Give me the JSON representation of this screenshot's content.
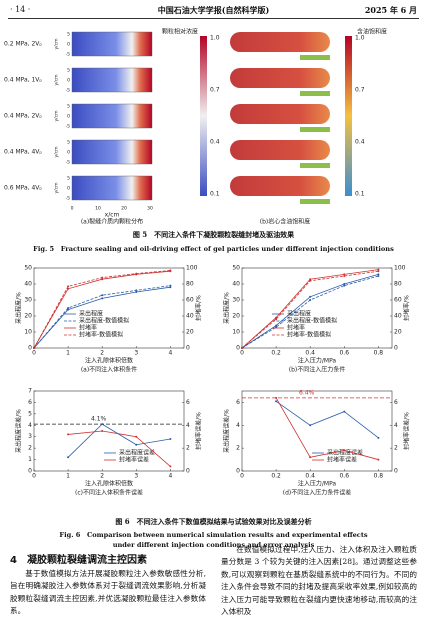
{
  "header": {
    "page": "· 14 ·",
    "journal": "中国石油大学学报(自然科学版)",
    "date": "2025 年 6 月"
  },
  "figure5": {
    "rows": [
      "0.2 MPa, 2Vₚ",
      "0.4 MPa, 1Vₚ",
      "0.4 MPa, 2Vₚ",
      "0.4 MPa, 4Vₚ",
      "0.6 MPa, 4Vₚ"
    ],
    "y_label": "y/cm",
    "y_ticks": [
      "5",
      "0",
      "-5"
    ],
    "x_label": "x/cm",
    "x_ticks": [
      "0",
      "10",
      "20",
      "30"
    ],
    "colorbar_left": "颗粒相对浓度",
    "colorbar_right": "含油饱和度",
    "colorbar_ticks": [
      "1.0",
      "0.7",
      "0.4",
      "0.1"
    ],
    "sub_a": "(a)裂缝介质内颗粒分布",
    "sub_b": "(b)岩心含油饱和度",
    "caption_cn": "图 5　不同注入条件下凝胶颗粒裂缝封堵及驱油效果",
    "caption_en": "Fig. 5　Fracture sealing and oil-driving effect of gel particles under different injection conditions"
  },
  "figure6": {
    "panels": [
      {
        "type": "line",
        "x_label": "注入孔隙体积倍数",
        "y_label": "采出程度/%",
        "y2_label": "封堵率/%",
        "subcaption": "(a)不同注入体积条件",
        "x": [
          0,
          1,
          2,
          3,
          4
        ],
        "xlim": [
          0,
          4.4
        ],
        "xticks": [
          0,
          1,
          2,
          3,
          4
        ],
        "ylim": [
          0,
          50
        ],
        "yticks": [
          0,
          10,
          20,
          30,
          40,
          50
        ],
        "y2lim": [
          0,
          100
        ],
        "y2ticks": [
          0,
          20,
          40,
          60,
          80,
          100
        ],
        "series": [
          {
            "name": "采出程度",
            "color": "#2a5caa",
            "dash": false,
            "values": [
              0,
              24,
              31,
              35,
              38
            ]
          },
          {
            "name": "采出程度-数值模拟",
            "color": "#2a5caa",
            "dash": true,
            "values": [
              0,
              25,
              33,
              36,
              39
            ]
          },
          {
            "name": "封堵率",
            "color": "#d03030",
            "dash": false,
            "axis": "y2",
            "values": [
              0,
              74,
              86,
              92,
              96
            ]
          },
          {
            "name": "封堵率-数值模拟",
            "color": "#d03030",
            "dash": true,
            "axis": "y2",
            "values": [
              0,
              77,
              88,
              93,
              97
            ]
          }
        ]
      },
      {
        "type": "line",
        "x_label": "注入压力/MPa",
        "y_label": "采出程度/%",
        "y2_label": "封堵率/%",
        "subcaption": "(b)不同注入压力条件",
        "x": [
          0,
          0.2,
          0.4,
          0.6,
          0.8
        ],
        "xlim": [
          0,
          0.88
        ],
        "xticks": [
          0,
          0.2,
          0.4,
          0.6,
          0.8
        ],
        "ylim": [
          0,
          50
        ],
        "yticks": [
          0,
          10,
          20,
          30,
          40,
          50
        ],
        "y2lim": [
          0,
          100
        ],
        "y2ticks": [
          0,
          20,
          40,
          60,
          80,
          100
        ],
        "series": [
          {
            "name": "采出程度",
            "color": "#2a5caa",
            "dash": false,
            "values": [
              0,
              14,
              32,
              40,
              46
            ]
          },
          {
            "name": "采出程度-数值模拟",
            "color": "#2a5caa",
            "dash": true,
            "values": [
              0,
              13,
              30,
              39,
              45
            ]
          },
          {
            "name": "封堵率",
            "color": "#d03030",
            "dash": false,
            "axis": "y2",
            "values": [
              0,
              38,
              86,
              92,
              98
            ]
          },
          {
            "name": "封堵率-数值模拟",
            "color": "#d03030",
            "dash": true,
            "axis": "y2",
            "values": [
              0,
              36,
              84,
              90,
              96
            ]
          }
        ]
      },
      {
        "type": "line",
        "x_label": "注入孔隙体积倍数",
        "y_label": "采出程度误差/%",
        "y2_label": "封堵率误差/%",
        "subcaption": "(c)不同注入体积条件误差",
        "x": [
          1,
          2,
          3,
          4
        ],
        "xlim": [
          0,
          4.4
        ],
        "xticks": [
          0,
          1,
          2,
          3,
          4
        ],
        "ylim": [
          0,
          7
        ],
        "yticks": [
          0,
          1,
          2,
          3,
          4,
          5,
          6,
          7
        ],
        "y2lim": [
          0,
          7
        ],
        "y2ticks": [
          0,
          2,
          4,
          6
        ],
        "annotation": {
          "text": "4.1%",
          "value": 4.1,
          "color": "#222"
        },
        "series": [
          {
            "name": "采出程度误差",
            "color": "#2a5caa",
            "dash": false,
            "values": [
              1.2,
              4.1,
              2.3,
              2.8
            ]
          },
          {
            "name": "封堵率误差",
            "color": "#d03030",
            "dash": false,
            "axis": "y2",
            "values": [
              3.2,
              3.5,
              3.0,
              0.4
            ]
          }
        ]
      },
      {
        "type": "line",
        "x_label": "注入压力/MPa",
        "y_label": "采出程度误差/%",
        "y2_label": "封堵率误差/%",
        "subcaption": "(d)不同注入压力条件误差",
        "x": [
          0.2,
          0.4,
          0.6,
          0.8
        ],
        "xlim": [
          0,
          0.88
        ],
        "xticks": [
          0,
          0.2,
          0.4,
          0.6,
          0.8
        ],
        "ylim": [
          0,
          7
        ],
        "yticks": [
          0,
          2,
          4,
          6
        ],
        "y2lim": [
          0,
          7
        ],
        "y2ticks": [
          0,
          2,
          4,
          6
        ],
        "annotation": {
          "text": "6.4%",
          "value": 6.4,
          "color": "#d03030"
        },
        "series": [
          {
            "name": "采出程度误差",
            "color": "#2a5caa",
            "dash": false,
            "values": [
              6.1,
              4.0,
              5.2,
              2.9
            ]
          },
          {
            "name": "封堵率误差",
            "color": "#d03030",
            "dash": false,
            "axis": "y2",
            "values": [
              6.4,
              1.2,
              1.8,
              1.0
            ]
          }
        ]
      }
    ],
    "caption_cn": "图 6　不同注入条件下数值模拟结果与试验效果对比及误差分析",
    "caption_en": "Fig. 6　Comparison between numerical simulation results and experimental effects under different injection conditions and error analysis"
  },
  "section": {
    "heading": "4　凝胶颗粒裂缝调流主控因素",
    "left": "基于数值模拟方法开展凝胶颗粒注入参数敏感性分析,旨在明确凝胶注入参数体系对于裂缝调流效果影响,分析凝胶颗粒裂缝调流主控因素,并优选凝胶颗粒最佳注入参数体系。",
    "right": "在数值模拟过程中,注入压力、注入体积及注入颗粒质量分数是 3 个较为关键的注入因素[28]。通过调整这些参数,可以观察到颗粒在基质裂缝系统中的不同行为。不同的注入条件会导致不同的封堵及提高采收率效果,例如较高的注入压力可能导致颗粒在裂缝内更快速地移动,而较高的注入体积及"
  }
}
